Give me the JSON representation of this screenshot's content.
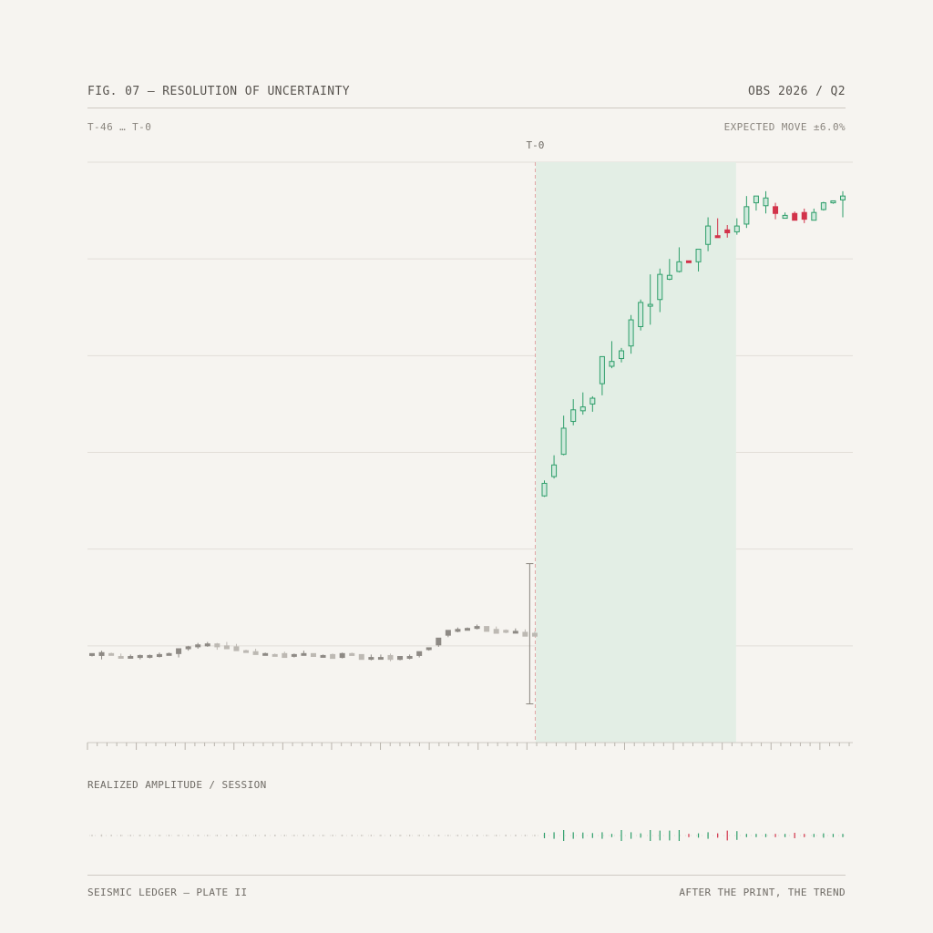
{
  "header": {
    "title": "FIG. 07 — RESOLUTION OF UNCERTAINTY",
    "period": "OBS 2026 / Q2",
    "range": "T-46 … T-0",
    "expected_move": "EXPECTED MOVE ±6.0%"
  },
  "event": {
    "label": "T-0"
  },
  "subpanel": {
    "title": "REALIZED AMPLITUDE / SESSION"
  },
  "footer": {
    "left": "SEISMIC LEDGER — PLATE II",
    "right": "AFTER THE PRINT, THE TREND"
  },
  "colors": {
    "background": "#f6f4f0",
    "pre_event": "#8e8a85",
    "pre_event_light": "#bdb9b3",
    "up": "#2e9e6a",
    "down": "#d2334a",
    "shade": "#e3eee5",
    "event_line": "#e2a5a5",
    "grid": "#e2ded8"
  },
  "chart_data": {
    "type": "candlestick",
    "x_range": [
      -46,
      31
    ],
    "y_range": [
      0,
      6
    ],
    "event_index": 46,
    "shaded_range": [
      46,
      67
    ],
    "grid": true,
    "event_gap": {
      "from": 0.4,
      "to": 1.85
    },
    "pre_event": [
      [
        0.9,
        0.91,
        0.89,
        0.92
      ],
      [
        0.9,
        0.95,
        0.86,
        0.93
      ],
      [
        0.92,
        0.93,
        0.9,
        0.91
      ],
      [
        0.89,
        0.92,
        0.87,
        0.88
      ],
      [
        0.88,
        0.91,
        0.87,
        0.89
      ],
      [
        0.88,
        0.91,
        0.86,
        0.9
      ],
      [
        0.89,
        0.91,
        0.87,
        0.9
      ],
      [
        0.89,
        0.93,
        0.88,
        0.91
      ],
      [
        0.91,
        0.93,
        0.9,
        0.92
      ],
      [
        0.92,
        0.95,
        0.88,
        0.97
      ],
      [
        0.97,
        1.0,
        0.95,
        0.99
      ],
      [
        0.99,
        1.03,
        0.97,
        1.01
      ],
      [
        1.0,
        1.04,
        0.99,
        1.02
      ],
      [
        1.02,
        1.03,
        0.96,
        0.99
      ],
      [
        1.0,
        1.04,
        0.98,
        0.97
      ],
      [
        0.99,
        1.02,
        0.96,
        0.95
      ],
      [
        0.95,
        0.96,
        0.93,
        0.94
      ],
      [
        0.94,
        0.97,
        0.91,
        0.91
      ],
      [
        0.91,
        0.93,
        0.9,
        0.92
      ],
      [
        0.91,
        0.92,
        0.9,
        0.9
      ],
      [
        0.92,
        0.94,
        0.88,
        0.88
      ],
      [
        0.9,
        0.92,
        0.88,
        0.91
      ],
      [
        0.92,
        0.95,
        0.9,
        0.92
      ],
      [
        0.92,
        0.91,
        0.9,
        0.89
      ],
      [
        0.89,
        0.91,
        0.88,
        0.9
      ],
      [
        0.91,
        0.92,
        0.89,
        0.87
      ],
      [
        0.88,
        0.93,
        0.87,
        0.92
      ],
      [
        0.92,
        0.93,
        0.9,
        0.9
      ],
      [
        0.91,
        0.91,
        0.89,
        0.86
      ],
      [
        0.87,
        0.91,
        0.85,
        0.88
      ],
      [
        0.88,
        0.91,
        0.86,
        0.88
      ],
      [
        0.9,
        0.92,
        0.84,
        0.86
      ],
      [
        0.86,
        0.88,
        0.85,
        0.89
      ],
      [
        0.88,
        0.91,
        0.86,
        0.89
      ],
      [
        0.9,
        0.94,
        0.88,
        0.94
      ],
      [
        0.97,
        0.98,
        0.95,
        0.98
      ],
      [
        1.01,
        1.04,
        0.99,
        1.08
      ],
      [
        1.11,
        1.14,
        1.09,
        1.16
      ],
      [
        1.15,
        1.19,
        1.14,
        1.17
      ],
      [
        1.18,
        1.19,
        1.16,
        1.18
      ],
      [
        1.18,
        1.22,
        1.17,
        1.2
      ],
      [
        1.2,
        1.18,
        1.15,
        1.15
      ],
      [
        1.17,
        1.2,
        1.15,
        1.13
      ],
      [
        1.16,
        1.17,
        1.13,
        1.14
      ],
      [
        1.15,
        1.18,
        1.13,
        1.15
      ],
      [
        1.14,
        1.17,
        1.11,
        1.1
      ],
      [
        1.13,
        1.15,
        1.11,
        1.1
      ]
    ],
    "post_event": [
      [
        2.55,
        2.71,
        2.54,
        2.68
      ],
      [
        2.75,
        2.97,
        2.73,
        2.87
      ],
      [
        2.98,
        3.38,
        2.97,
        3.25
      ],
      [
        3.32,
        3.55,
        3.28,
        3.44
      ],
      [
        3.43,
        3.62,
        3.39,
        3.47
      ],
      [
        3.5,
        3.58,
        3.42,
        3.56
      ],
      [
        3.71,
        3.84,
        3.59,
        3.99
      ],
      [
        3.89,
        4.15,
        3.87,
        3.94
      ],
      [
        3.97,
        4.08,
        3.93,
        4.05
      ],
      [
        4.1,
        4.42,
        4.02,
        4.37
      ],
      [
        4.3,
        4.58,
        4.26,
        4.55
      ],
      [
        4.52,
        4.84,
        4.32,
        4.53
      ],
      [
        4.58,
        4.9,
        4.45,
        4.84
      ],
      [
        4.79,
        5.0,
        4.78,
        4.83
      ],
      [
        4.87,
        5.12,
        4.86,
        4.97
      ],
      [
        4.98,
        4.98,
        4.97,
        4.97
      ],
      [
        4.97,
        5.09,
        4.87,
        5.1
      ],
      [
        5.15,
        5.43,
        5.08,
        5.34
      ],
      [
        5.24,
        5.42,
        5.28,
        5.22
      ],
      [
        5.3,
        5.35,
        5.22,
        5.27
      ],
      [
        5.28,
        5.42,
        5.25,
        5.34
      ],
      [
        5.36,
        5.65,
        5.32,
        5.54
      ],
      [
        5.58,
        5.64,
        5.5,
        5.65
      ],
      [
        5.55,
        5.7,
        5.47,
        5.63
      ],
      [
        5.54,
        5.58,
        5.41,
        5.47
      ],
      [
        5.42,
        5.48,
        5.48,
        5.45
      ],
      [
        5.47,
        5.49,
        5.41,
        5.4
      ],
      [
        5.48,
        5.52,
        5.37,
        5.41
      ],
      [
        5.4,
        5.52,
        5.4,
        5.48
      ],
      [
        5.51,
        5.59,
        5.5,
        5.58
      ],
      [
        5.58,
        5.59,
        5.57,
        5.6
      ],
      [
        5.61,
        5.7,
        5.43,
        5.65
      ]
    ],
    "amplitude": [
      0.15,
      0.2,
      0.15,
      0.15,
      0.15,
      0.15,
      0.15,
      0.15,
      0.15,
      0.15,
      0.15,
      0.15,
      0.15,
      0.15,
      0.15,
      0.15,
      0.15,
      0.15,
      0.15,
      0.15,
      0.15,
      0.15,
      0.15,
      0.15,
      0.15,
      0.15,
      0.15,
      0.15,
      0.15,
      0.15,
      0.15,
      0.15,
      0.15,
      0.15,
      0.15,
      0.15,
      0.15,
      0.15,
      0.15,
      0.15,
      0.15,
      0.15,
      0.15,
      0.15,
      0.15,
      0.15,
      0.15,
      0.5,
      0.6,
      1.0,
      0.6,
      0.55,
      0.45,
      0.6,
      0.3,
      1.0,
      0.6,
      0.4,
      1.0,
      0.9,
      0.9,
      1.0,
      0.3,
      0.4,
      0.6,
      0.4,
      0.9,
      0.8,
      0.3,
      0.3,
      0.3,
      0.3,
      0.3,
      0.5,
      0.3,
      0.3,
      0.4,
      0.3,
      0.3,
      0.3,
      0.3,
      0.3,
      0.5
    ]
  }
}
